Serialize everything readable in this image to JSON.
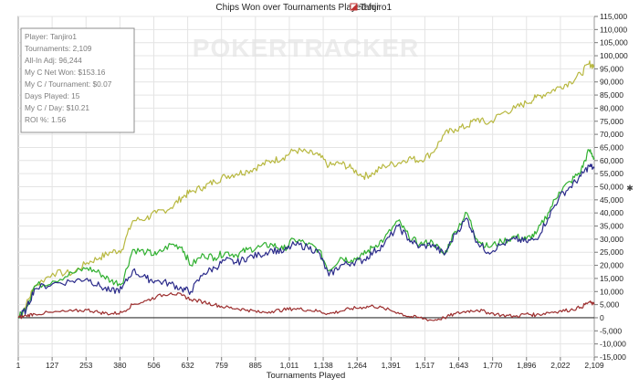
{
  "chart_data": {
    "type": "line",
    "title": "Chips Won over Tournaments Played for",
    "player_name": "Tanjiro1",
    "xlabel": "Tournaments Played",
    "ylabel": "",
    "watermark": "POKERTRACKER",
    "xlim": [
      1,
      2109
    ],
    "ylim": [
      -15000,
      115000
    ],
    "x_ticks": [
      "1",
      "127",
      "253",
      "380",
      "506",
      "632",
      "759",
      "885",
      "1,011",
      "1,138",
      "1,264",
      "1,391",
      "1,517",
      "1,643",
      "1,770",
      "1,896",
      "2,022",
      "2,109"
    ],
    "y_ticks": [
      {
        "v": 115000,
        "l": "115,000"
      },
      {
        "v": 110000,
        "l": "110,000"
      },
      {
        "v": 105000,
        "l": "105,000"
      },
      {
        "v": 100000,
        "l": "100,000"
      },
      {
        "v": 95000,
        "l": "95,000"
      },
      {
        "v": 90000,
        "l": "90,000"
      },
      {
        "v": 85000,
        "l": "85,000"
      },
      {
        "v": 80000,
        "l": "80,000"
      },
      {
        "v": 75000,
        "l": "75,000"
      },
      {
        "v": 70000,
        "l": "70,000"
      },
      {
        "v": 65000,
        "l": "65,000"
      },
      {
        "v": 60000,
        "l": "60,000"
      },
      {
        "v": 55000,
        "l": "55,000"
      },
      {
        "v": 50000,
        "l": "50,000"
      },
      {
        "v": 45000,
        "l": "45,000"
      },
      {
        "v": 40000,
        "l": "40,000"
      },
      {
        "v": 35000,
        "l": "35,000"
      },
      {
        "v": 30000,
        "l": "30,000"
      },
      {
        "v": 25000,
        "l": "25,000"
      },
      {
        "v": 20000,
        "l": "20,000"
      },
      {
        "v": 15000,
        "l": "15,000"
      },
      {
        "v": 10000,
        "l": "10,000"
      },
      {
        "v": 5000,
        "l": "5,000"
      },
      {
        "v": 0,
        "l": "0"
      },
      {
        "v": -5000,
        "l": "-5,000"
      },
      {
        "v": -10000,
        "l": "-10,000"
      },
      {
        "v": -15000,
        "l": "-15,000"
      }
    ],
    "grid": true,
    "info_box": [
      "Player: Tanjiro1",
      "Tournaments: 2,109",
      "All-In Adj: 96,244",
      "My C Net Won: $153.16",
      "My C / Tournament: $0.07",
      "Days Played: 15",
      "My C / Day: $10.21",
      "ROI %: 1.56"
    ],
    "series": [
      {
        "color": "#b8b840",
        "x": [
          1,
          30,
          60,
          127,
          200,
          253,
          300,
          340,
          380,
          420,
          470,
          506,
          560,
          600,
          632,
          680,
          720,
          759,
          800,
          840,
          885,
          930,
          970,
          1011,
          1060,
          1100,
          1138,
          1180,
          1220,
          1264,
          1300,
          1340,
          1391,
          1430,
          1470,
          1517,
          1560,
          1600,
          1643,
          1680,
          1720,
          1770,
          1820,
          1860,
          1896,
          1940,
          1980,
          2022,
          2060,
          2090,
          2109
        ],
        "y": [
          0,
          5000,
          12000,
          17000,
          17000,
          21000,
          23000,
          25000,
          26000,
          37000,
          38000,
          40000,
          42000,
          46000,
          48000,
          50000,
          52000,
          54000,
          55000,
          56000,
          58000,
          60000,
          61000,
          64000,
          63000,
          62000,
          58000,
          59000,
          57000,
          54000,
          55000,
          58000,
          59000,
          61000,
          60000,
          63000,
          70000,
          72000,
          73000,
          76000,
          74000,
          78000,
          80000,
          82000,
          84000,
          86000,
          88000,
          90000,
          93000,
          97000,
          96000
        ]
      },
      {
        "color": "#30b030",
        "x": [
          1,
          30,
          60,
          127,
          200,
          253,
          300,
          340,
          380,
          420,
          470,
          506,
          560,
          600,
          632,
          680,
          720,
          759,
          800,
          840,
          885,
          930,
          970,
          1011,
          1060,
          1100,
          1138,
          1180,
          1220,
          1264,
          1300,
          1340,
          1391,
          1430,
          1470,
          1517,
          1560,
          1600,
          1643,
          1680,
          1720,
          1770,
          1820,
          1860,
          1896,
          1940,
          1980,
          2022,
          2060,
          2090,
          2109
        ],
        "y": [
          0,
          4000,
          12000,
          14000,
          17000,
          19000,
          17000,
          14000,
          13000,
          26000,
          25000,
          24000,
          28000,
          27000,
          20000,
          24000,
          23000,
          25000,
          24000,
          26000,
          27000,
          28000,
          26000,
          30000,
          28000,
          26000,
          18000,
          23000,
          22000,
          24000,
          27000,
          30000,
          37000,
          31000,
          28000,
          29000,
          24000,
          33000,
          40000,
          30000,
          27000,
          29000,
          31000,
          30000,
          32000,
          40000,
          48000,
          52000,
          56000,
          64000,
          61000
        ]
      },
      {
        "color": "#2a2a8a",
        "x": [
          1,
          30,
          60,
          127,
          200,
          253,
          300,
          340,
          380,
          420,
          470,
          506,
          560,
          600,
          632,
          680,
          720,
          759,
          800,
          840,
          885,
          930,
          970,
          1011,
          1060,
          1100,
          1138,
          1180,
          1220,
          1264,
          1300,
          1340,
          1391,
          1430,
          1470,
          1517,
          1560,
          1600,
          1643,
          1680,
          1720,
          1770,
          1820,
          1860,
          1896,
          1940,
          1980,
          2022,
          2060,
          2090,
          2109
        ],
        "y": [
          0,
          3000,
          11000,
          13000,
          14000,
          15000,
          12000,
          10000,
          11000,
          18000,
          15000,
          14000,
          13000,
          11000,
          10000,
          17000,
          19000,
          22000,
          21000,
          23000,
          24000,
          26000,
          25000,
          28000,
          27000,
          25000,
          16000,
          20000,
          21000,
          22000,
          25000,
          28000,
          35000,
          30000,
          27000,
          28000,
          24000,
          32000,
          38000,
          29000,
          25000,
          28000,
          30000,
          29000,
          30000,
          38000,
          46000,
          50000,
          54000,
          58000,
          57000
        ]
      },
      {
        "color": "#9c2e2e",
        "x": [
          1,
          30,
          60,
          127,
          200,
          253,
          300,
          340,
          380,
          420,
          470,
          506,
          560,
          600,
          632,
          680,
          720,
          759,
          800,
          840,
          885,
          930,
          970,
          1011,
          1060,
          1100,
          1138,
          1180,
          1220,
          1264,
          1300,
          1340,
          1391,
          1430,
          1470,
          1517,
          1560,
          1600,
          1643,
          1680,
          1720,
          1770,
          1820,
          1860,
          1896,
          1940,
          1980,
          2022,
          2060,
          2090,
          2109
        ],
        "y": [
          0,
          800,
          1500,
          2000,
          2500,
          3000,
          2000,
          1500,
          2000,
          5000,
          6500,
          8000,
          9500,
          8500,
          7000,
          6000,
          5000,
          4000,
          3500,
          3000,
          2000,
          2500,
          3000,
          3500,
          3000,
          2500,
          1500,
          2500,
          3500,
          4000,
          4500,
          3500,
          2000,
          500,
          0,
          -1000,
          0,
          1500,
          2500,
          3000,
          2000,
          1000,
          500,
          1500,
          1000,
          2000,
          2500,
          3000,
          4000,
          6000,
          5000
        ]
      }
    ]
  }
}
